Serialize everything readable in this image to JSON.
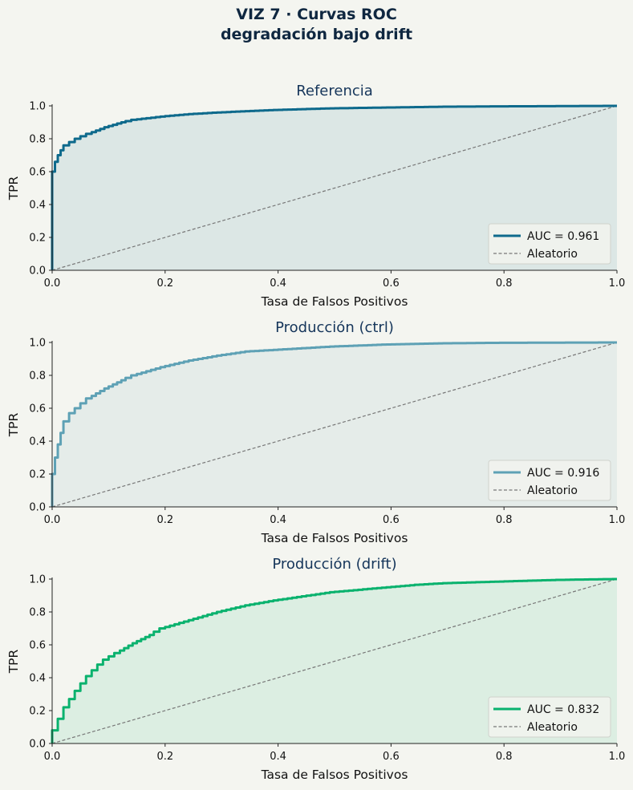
{
  "figure": {
    "title_line1": "VIZ 7 · Curvas ROC",
    "title_line2": "degradación bajo drift"
  },
  "chart_data": [
    {
      "type": "line",
      "title": "Referencia",
      "xlabel": "Tasa de Falsos Positivos",
      "ylabel": "TPR",
      "xlim": [
        0,
        1
      ],
      "ylim": [
        0,
        1
      ],
      "xticks": [
        "0.0",
        "0.2",
        "0.4",
        "0.6",
        "0.8",
        "1.0"
      ],
      "yticks": [
        "0.0",
        "0.2",
        "0.4",
        "0.6",
        "0.8",
        "1.0"
      ],
      "grid": false,
      "legend_position": "bottom-right",
      "color": "#0e6a8c",
      "fill_color": "#0e6a8c",
      "series": [
        {
          "name": "AUC = 0.961",
          "x": [
            0,
            0,
            0.005,
            0.01,
            0.015,
            0.02,
            0.03,
            0.04,
            0.05,
            0.07,
            0.1,
            0.13,
            0.15,
            0.2,
            0.25,
            0.3,
            0.4,
            0.5,
            0.6,
            0.7,
            0.8,
            1.0
          ],
          "y": [
            0,
            0.5,
            0.6,
            0.66,
            0.7,
            0.73,
            0.76,
            0.78,
            0.8,
            0.83,
            0.87,
            0.9,
            0.915,
            0.935,
            0.95,
            0.96,
            0.975,
            0.985,
            0.99,
            0.995,
            0.997,
            1.0
          ]
        },
        {
          "name": "Aleatorio",
          "x": [
            0,
            1
          ],
          "y": [
            0,
            1
          ],
          "style": "dashed",
          "color": "#777777"
        }
      ]
    },
    {
      "type": "line",
      "title": "Producción (ctrl)",
      "xlabel": "Tasa de Falsos Positivos",
      "ylabel": "TPR",
      "xlim": [
        0,
        1
      ],
      "ylim": [
        0,
        1
      ],
      "xticks": [
        "0.0",
        "0.2",
        "0.4",
        "0.6",
        "0.8",
        "1.0"
      ],
      "yticks": [
        "0.0",
        "0.2",
        "0.4",
        "0.6",
        "0.8",
        "1.0"
      ],
      "grid": false,
      "legend_position": "bottom-right",
      "color": "#5ea1b5",
      "fill_color": "#5ea1b5",
      "series": [
        {
          "name": "AUC = 0.916",
          "x": [
            0,
            0.005,
            0.01,
            0.015,
            0.02,
            0.03,
            0.04,
            0.05,
            0.07,
            0.1,
            0.13,
            0.15,
            0.2,
            0.25,
            0.3,
            0.35,
            0.4,
            0.5,
            0.6,
            0.7,
            0.8,
            0.9,
            1.0
          ],
          "y": [
            0,
            0.2,
            0.3,
            0.38,
            0.45,
            0.52,
            0.57,
            0.6,
            0.66,
            0.72,
            0.77,
            0.8,
            0.85,
            0.89,
            0.92,
            0.945,
            0.955,
            0.975,
            0.988,
            0.995,
            0.998,
            0.999,
            1.0
          ]
        },
        {
          "name": "Aleatorio",
          "x": [
            0,
            1
          ],
          "y": [
            0,
            1
          ],
          "style": "dashed",
          "color": "#777777"
        }
      ]
    },
    {
      "type": "line",
      "title": "Producción (drift)",
      "xlabel": "Tasa de Falsos Positivos",
      "ylabel": "TPR",
      "xlim": [
        0,
        1
      ],
      "ylim": [
        0,
        1
      ],
      "xticks": [
        "0.0",
        "0.2",
        "0.4",
        "0.6",
        "0.8",
        "1.0"
      ],
      "yticks": [
        "0.0",
        "0.2",
        "0.4",
        "0.6",
        "0.8",
        "1.0"
      ],
      "grid": false,
      "legend_position": "bottom-right",
      "color": "#0ab26e",
      "fill_color": "#0ab26e",
      "series": [
        {
          "name": "AUC = 0.832",
          "x": [
            0,
            0.01,
            0.02,
            0.03,
            0.05,
            0.07,
            0.09,
            0.1,
            0.12,
            0.15,
            0.18,
            0.2,
            0.25,
            0.3,
            0.35,
            0.4,
            0.45,
            0.5,
            0.55,
            0.6,
            0.65,
            0.7,
            0.8,
            0.9,
            1.0
          ],
          "y": [
            0,
            0.08,
            0.15,
            0.22,
            0.32,
            0.41,
            0.48,
            0.51,
            0.55,
            0.61,
            0.66,
            0.7,
            0.75,
            0.8,
            0.84,
            0.87,
            0.895,
            0.92,
            0.935,
            0.95,
            0.965,
            0.975,
            0.985,
            0.995,
            1.0
          ]
        },
        {
          "name": "Aleatorio",
          "x": [
            0,
            1
          ],
          "y": [
            0,
            1
          ],
          "style": "dashed",
          "color": "#777777"
        }
      ]
    }
  ]
}
